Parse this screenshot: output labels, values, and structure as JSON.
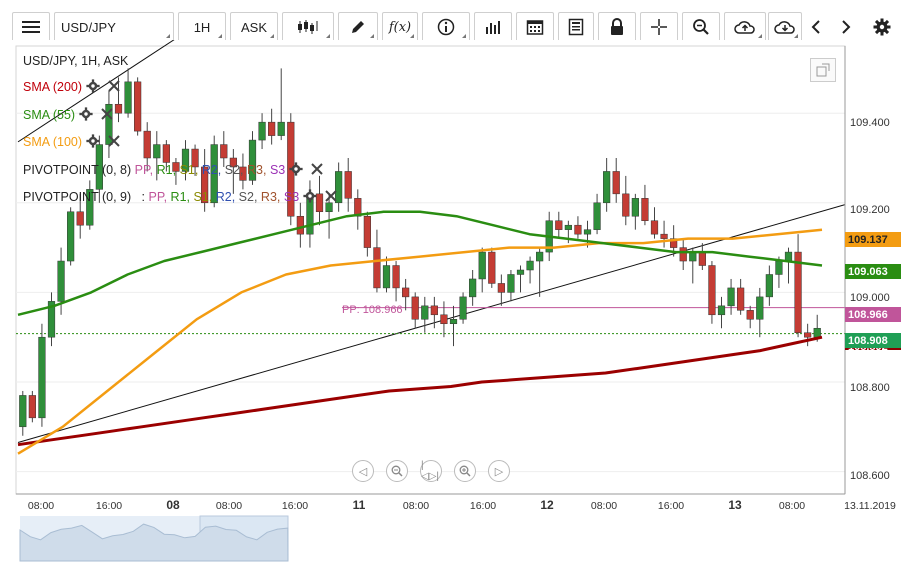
{
  "toolbar": {
    "symbol": "USD/JPY",
    "interval": "1H",
    "price_type": "ASK",
    "icons": [
      "menu-icon",
      "candles-icon",
      "pencil-icon",
      "fx-icon",
      "info-icon",
      "bar-chart-icon",
      "calendar-icon",
      "news-icon",
      "lock-icon",
      "crosshair-icon",
      "zoom-icon",
      "cloud-upload-icon",
      "cloud-download-icon",
      "chevron-left-icon",
      "chevron-right-icon",
      "gear-icon"
    ],
    "fx_label": "f(x)"
  },
  "chart": {
    "title": "USD/JPY, 1H, ASK",
    "indicators": [
      {
        "label": "SMA (200)",
        "color": "#c0000a"
      },
      {
        "label": "SMA (55)",
        "color": "#2a8d12"
      },
      {
        "label": "SMA (100)",
        "color": "#f39c12"
      }
    ],
    "pivots": [
      {
        "prefix": "PIVOTPOINT (0, 8)",
        "sep": "",
        "pp": "PP,",
        "r1": "R1,",
        "s1": "S1,",
        "r2": "R2,",
        "s2": "S2,",
        "r3": "R3,",
        "s3": "S3"
      },
      {
        "prefix": "PIVOTPOINT (0, 9)",
        "sep": ":",
        "pp": "PP,",
        "r1": "R1,",
        "s1": "S1,",
        "r2": "R2,",
        "s2": "S2,",
        "r3": "R3,",
        "s3": "S3"
      }
    ],
    "pp_label": "PP: 108.966",
    "price_tags": [
      {
        "value": "109.137",
        "bg": "#f39c12",
        "color": "#222"
      },
      {
        "value": "109.063",
        "bg": "#2a8d12",
        "color": "#fff"
      },
      {
        "value": "108.966",
        "bg": "#c0559a",
        "color": "#fff"
      },
      {
        "value": "108.908",
        "bg": "#1f9f55",
        "color": "#fff"
      },
      {
        "value": "108.892",
        "bg": "#8b0000",
        "color": "#fff"
      }
    ],
    "y_ticks": [
      "109.400",
      "109.200",
      "109.000",
      "108.800",
      "108.600"
    ],
    "x_ticks": [
      "08:00",
      "16:00",
      "08",
      "08:00",
      "16:00",
      "11",
      "08:00",
      "16:00",
      "12",
      "08:00",
      "16:00",
      "13",
      "08:00",
      "13.11.2019"
    ],
    "nav_icons": [
      "scroll-left-icon",
      "zoom-out-icon",
      "reset-icon",
      "zoom-in-icon",
      "scroll-right-icon"
    ]
  },
  "chart_data": {
    "type": "candlestick",
    "title": "USD/JPY, 1H, ASK",
    "xlabel": "",
    "ylabel": "",
    "ylim": [
      108.55,
      109.55
    ],
    "x_ticks": [
      "08:00",
      "16:00",
      "08",
      "08:00",
      "16:00",
      "11",
      "08:00",
      "16:00",
      "12",
      "08:00",
      "16:00",
      "13",
      "08:00",
      "13.11.2019"
    ],
    "y_ticks": [
      108.6,
      108.8,
      109.0,
      109.2,
      109.4
    ],
    "candles": [
      [
        108.7,
        108.78,
        108.68,
        108.77
      ],
      [
        108.77,
        108.78,
        108.71,
        108.72
      ],
      [
        108.72,
        108.93,
        108.7,
        108.9
      ],
      [
        108.9,
        109.0,
        108.88,
        108.98
      ],
      [
        108.98,
        109.1,
        108.95,
        109.07
      ],
      [
        109.07,
        109.19,
        109.06,
        109.18
      ],
      [
        109.18,
        109.22,
        109.12,
        109.15
      ],
      [
        109.15,
        109.25,
        109.14,
        109.23
      ],
      [
        109.23,
        109.35,
        109.2,
        109.33
      ],
      [
        109.33,
        109.45,
        109.3,
        109.42
      ],
      [
        109.42,
        109.48,
        109.38,
        109.4
      ],
      [
        109.4,
        109.5,
        109.39,
        109.47
      ],
      [
        109.47,
        109.48,
        109.35,
        109.36
      ],
      [
        109.36,
        109.38,
        109.27,
        109.3
      ],
      [
        109.3,
        109.36,
        109.25,
        109.33
      ],
      [
        109.33,
        109.34,
        109.27,
        109.29
      ],
      [
        109.29,
        109.3,
        109.24,
        109.27
      ],
      [
        109.27,
        109.34,
        109.25,
        109.32
      ],
      [
        109.32,
        109.33,
        109.26,
        109.28
      ],
      [
        109.28,
        109.32,
        109.18,
        109.2
      ],
      [
        109.2,
        109.35,
        109.19,
        109.33
      ],
      [
        109.33,
        109.36,
        109.28,
        109.3
      ],
      [
        109.3,
        109.32,
        109.22,
        109.28
      ],
      [
        109.28,
        109.31,
        109.23,
        109.25
      ],
      [
        109.25,
        109.36,
        109.24,
        109.34
      ],
      [
        109.34,
        109.4,
        109.32,
        109.38
      ],
      [
        109.38,
        109.41,
        109.33,
        109.35
      ],
      [
        109.35,
        109.5,
        109.34,
        109.38
      ],
      [
        109.38,
        109.4,
        109.15,
        109.17
      ],
      [
        109.17,
        109.2,
        109.1,
        109.13
      ],
      [
        109.13,
        109.25,
        109.1,
        109.22
      ],
      [
        109.22,
        109.26,
        109.15,
        109.18
      ],
      [
        109.18,
        109.22,
        109.12,
        109.2
      ],
      [
        109.2,
        109.29,
        109.18,
        109.27
      ],
      [
        109.27,
        109.3,
        109.18,
        109.21
      ],
      [
        109.21,
        109.23,
        109.14,
        109.17
      ],
      [
        109.17,
        109.18,
        109.08,
        109.1
      ],
      [
        109.1,
        109.14,
        109.0,
        109.01
      ],
      [
        109.01,
        109.08,
        109.0,
        109.06
      ],
      [
        109.06,
        109.07,
        108.98,
        109.01
      ],
      [
        109.01,
        109.03,
        108.96,
        108.99
      ],
      [
        108.99,
        109.0,
        108.92,
        108.94
      ],
      [
        108.94,
        108.99,
        108.91,
        108.97
      ],
      [
        108.97,
        108.99,
        108.92,
        108.95
      ],
      [
        108.95,
        108.98,
        108.9,
        108.93
      ],
      [
        108.93,
        108.97,
        108.88,
        108.94
      ],
      [
        108.94,
        109.0,
        108.93,
        108.99
      ],
      [
        108.99,
        109.05,
        108.97,
        109.03
      ],
      [
        109.03,
        109.1,
        109.0,
        109.09
      ],
      [
        109.09,
        109.1,
        109.01,
        109.02
      ],
      [
        109.02,
        109.04,
        108.97,
        109.0
      ],
      [
        109.0,
        109.05,
        108.98,
        109.04
      ],
      [
        109.04,
        109.06,
        109.0,
        109.05
      ],
      [
        109.05,
        109.08,
        109.02,
        109.07
      ],
      [
        109.07,
        109.1,
        108.99,
        109.09
      ],
      [
        109.09,
        109.18,
        109.07,
        109.16
      ],
      [
        109.16,
        109.18,
        109.12,
        109.14
      ],
      [
        109.14,
        109.16,
        109.11,
        109.15
      ],
      [
        109.15,
        109.17,
        109.12,
        109.13
      ],
      [
        109.13,
        109.16,
        109.1,
        109.14
      ],
      [
        109.14,
        109.22,
        109.13,
        109.2
      ],
      [
        109.2,
        109.3,
        109.18,
        109.27
      ],
      [
        109.27,
        109.3,
        109.2,
        109.22
      ],
      [
        109.22,
        109.26,
        109.15,
        109.17
      ],
      [
        109.17,
        109.22,
        109.14,
        109.21
      ],
      [
        109.21,
        109.24,
        109.15,
        109.16
      ],
      [
        109.16,
        109.19,
        109.12,
        109.13
      ],
      [
        109.13,
        109.16,
        109.1,
        109.12
      ],
      [
        109.12,
        109.15,
        109.08,
        109.1
      ],
      [
        109.1,
        109.12,
        109.05,
        109.07
      ],
      [
        109.07,
        109.1,
        109.02,
        109.09
      ],
      [
        109.09,
        109.11,
        109.05,
        109.06
      ],
      [
        109.06,
        109.07,
        108.93,
        108.95
      ],
      [
        108.95,
        108.99,
        108.92,
        108.97
      ],
      [
        108.97,
        109.03,
        108.95,
        109.01
      ],
      [
        109.01,
        109.03,
        108.95,
        108.96
      ],
      [
        108.96,
        108.97,
        108.92,
        108.94
      ],
      [
        108.94,
        109.01,
        108.9,
        108.99
      ],
      [
        108.99,
        109.06,
        108.97,
        109.04
      ],
      [
        109.04,
        109.08,
        109.01,
        109.07
      ],
      [
        109.07,
        109.1,
        109.02,
        109.09
      ],
      [
        109.09,
        109.13,
        108.9,
        108.91
      ],
      [
        108.91,
        108.93,
        108.88,
        108.9
      ],
      [
        108.9,
        108.95,
        108.89,
        108.92
      ]
    ],
    "sma200": [
      108.66,
      108.67,
      108.68,
      108.69,
      108.7,
      108.71,
      108.72,
      108.73,
      108.74,
      108.75,
      108.76,
      108.77,
      108.78,
      108.785,
      108.79,
      108.8,
      108.805,
      108.81,
      108.815,
      108.82,
      108.83,
      108.84,
      108.85,
      108.86,
      108.87,
      108.885,
      108.9
    ],
    "sma55": [
      108.95,
      108.97,
      109.0,
      109.04,
      109.07,
      109.09,
      109.11,
      109.13,
      109.15,
      109.17,
      109.18,
      109.18,
      109.17,
      109.15,
      109.13,
      109.12,
      109.11,
      109.1,
      109.09,
      109.09,
      109.08,
      109.07,
      109.06
    ],
    "sma100": [
      108.64,
      108.7,
      108.78,
      108.86,
      108.94,
      109.0,
      109.04,
      109.06,
      109.07,
      109.08,
      109.09,
      109.1,
      109.1,
      109.11,
      109.11,
      109.12,
      109.12,
      109.13,
      109.14
    ],
    "pivot_pp": 108.966,
    "last_price": 108.908
  }
}
